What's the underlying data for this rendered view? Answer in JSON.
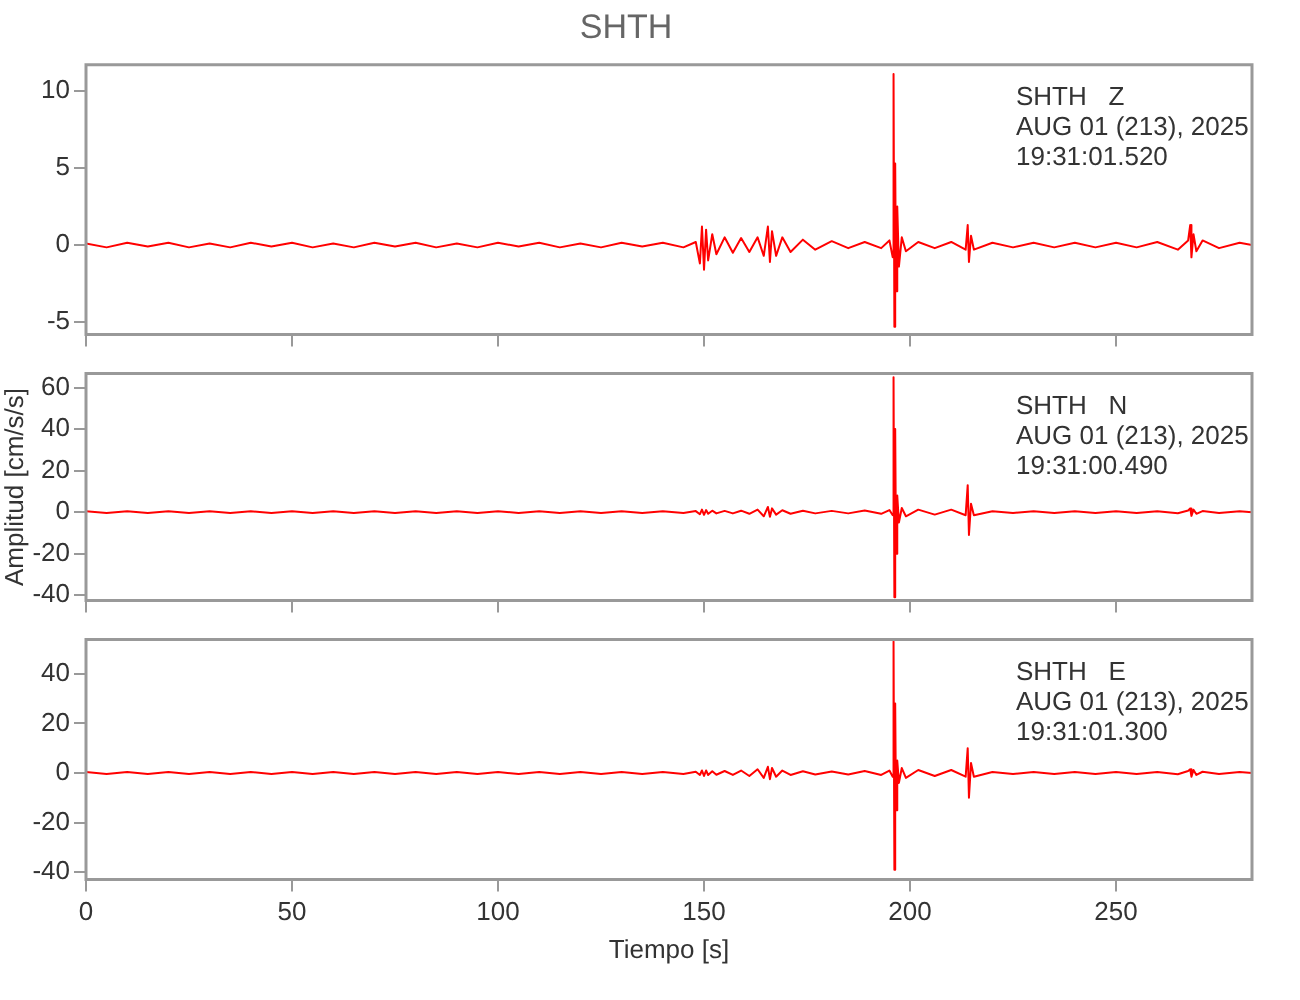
{
  "chart_data": [
    {
      "type": "line",
      "title": "SHTH",
      "x": [
        0,
        5,
        10,
        15,
        20,
        25,
        30,
        35,
        40,
        45,
        50,
        55,
        60,
        65,
        70,
        75,
        80,
        85,
        90,
        95,
        100,
        105,
        110,
        115,
        120,
        125,
        130,
        135,
        140,
        145,
        148,
        149,
        149.5,
        150,
        150.5,
        151,
        152,
        153,
        155,
        157,
        159,
        161,
        163,
        164.5,
        165.5,
        166,
        166.5,
        167.5,
        169,
        171,
        174,
        177,
        181,
        185,
        189,
        193,
        195,
        195.8,
        196,
        196.2,
        196.4,
        196.6,
        196.9,
        197.3,
        198,
        199,
        202,
        206,
        210,
        213.5,
        214,
        214.3,
        214.8,
        215.5,
        220,
        225,
        230,
        235,
        240,
        245,
        250,
        255,
        260,
        265,
        267.5,
        268,
        268.3,
        268.8,
        269.5,
        271,
        275,
        280,
        283
      ],
      "series": [
        {
          "color": "#ff0000",
          "values": [
            0.1,
            -0.15,
            0.15,
            -0.1,
            0.15,
            -0.15,
            0.1,
            -0.15,
            0.15,
            -0.1,
            0.15,
            -0.15,
            0.1,
            -0.15,
            0.15,
            -0.1,
            0.15,
            -0.15,
            0.1,
            -0.15,
            0.15,
            -0.1,
            0.15,
            -0.15,
            0.1,
            -0.15,
            0.15,
            -0.1,
            0.15,
            -0.15,
            0.2,
            -1.2,
            1.2,
            -1.6,
            1.0,
            -1.0,
            0.7,
            -0.6,
            0.5,
            -0.5,
            0.45,
            -0.45,
            0.5,
            -0.7,
            1.2,
            -1.1,
            0.9,
            -0.7,
            0.5,
            -0.45,
            0.35,
            -0.3,
            0.25,
            -0.2,
            0.2,
            -0.2,
            0.3,
            -0.8,
            11.1,
            -5.3,
            5.3,
            -3,
            2.5,
            -1.4,
            0.5,
            -0.4,
            0.2,
            -0.2,
            0.2,
            -0.3,
            1.3,
            -1.1,
            0.6,
            -0.3,
            0.15,
            -0.15,
            0.15,
            -0.15,
            0.15,
            -0.15,
            0.15,
            -0.15,
            0.2,
            -0.3,
            0.3,
            1.3,
            -0.8,
            0.7,
            -0.4,
            0.3,
            -0.2,
            0.15,
            0
          ]
        }
      ],
      "xlim": [
        0,
        283
      ],
      "xticks": [
        0,
        50,
        100,
        150,
        200,
        250
      ],
      "ylim": [
        -5.8,
        11.7
      ],
      "yticks": [
        -5,
        0,
        5,
        10
      ],
      "annotations": [
        "SHTH   Z",
        "AUG 01 (213), 2025",
        "19:31:01.520"
      ],
      "tick_labels": "y",
      "marker": "none"
    },
    {
      "type": "line",
      "ylabel": "Amplitud [cm/s/s]",
      "x": [
        0,
        5,
        10,
        15,
        20,
        25,
        30,
        35,
        40,
        45,
        50,
        55,
        60,
        65,
        70,
        75,
        80,
        85,
        90,
        95,
        100,
        105,
        110,
        115,
        120,
        125,
        130,
        135,
        140,
        145,
        148,
        149,
        149.5,
        150,
        150.5,
        151,
        152,
        153,
        155,
        157,
        159,
        161,
        163,
        164.5,
        165.5,
        166,
        166.5,
        167.5,
        169,
        171,
        174,
        177,
        181,
        185,
        189,
        193,
        195,
        195.8,
        196,
        196.2,
        196.4,
        196.6,
        196.9,
        197.3,
        198,
        199,
        202,
        206,
        210,
        213.5,
        214,
        214.3,
        214.8,
        215.5,
        220,
        225,
        230,
        235,
        240,
        245,
        250,
        255,
        260,
        265,
        267.5,
        268,
        268.3,
        268.8,
        269.5,
        271,
        275,
        280,
        283
      ],
      "series": [
        {
          "color": "#ff0000",
          "values": [
            0.4,
            -0.4,
            0.4,
            -0.4,
            0.4,
            -0.4,
            0.4,
            -0.4,
            0.4,
            -0.4,
            0.4,
            -0.4,
            0.4,
            -0.4,
            0.4,
            -0.4,
            0.4,
            -0.4,
            0.4,
            -0.4,
            0.4,
            -0.4,
            0.4,
            -0.4,
            0.4,
            -0.4,
            0.4,
            -0.4,
            0.4,
            -0.4,
            0.5,
            -1.0,
            1.2,
            -1.3,
            1.0,
            -0.8,
            0.7,
            -0.6,
            0.6,
            -0.6,
            0.7,
            -0.8,
            1.2,
            -2.0,
            2.5,
            -2.2,
            1.8,
            -1.2,
            0.9,
            -0.8,
            0.7,
            -0.6,
            0.6,
            -0.6,
            0.8,
            -0.8,
            1.0,
            -1.5,
            65,
            -41,
            40,
            -20,
            8,
            -5,
            2,
            -2,
            1.2,
            -1.2,
            1.2,
            -1.5,
            13,
            -11,
            4,
            -1.5,
            0.4,
            -0.4,
            0.4,
            -0.4,
            0.4,
            -0.4,
            0.4,
            -0.4,
            0.4,
            -0.5,
            0.8,
            1.8,
            -1.8,
            1.2,
            -0.8,
            0.5,
            -0.4,
            0.4,
            0
          ]
        }
      ],
      "xlim": [
        0,
        283
      ],
      "xticks": [
        0,
        50,
        100,
        150,
        200,
        250
      ],
      "ylim": [
        -42.5,
        66.7
      ],
      "yticks": [
        -40,
        -20,
        0,
        20,
        40,
        60
      ],
      "annotations": [
        "SHTH   N",
        "AUG 01 (213), 2025",
        "19:31:00.490"
      ],
      "tick_labels": "y",
      "marker": "none"
    },
    {
      "type": "line",
      "xlabel": "Tiempo [s]",
      "x": [
        0,
        5,
        10,
        15,
        20,
        25,
        30,
        35,
        40,
        45,
        50,
        55,
        60,
        65,
        70,
        75,
        80,
        85,
        90,
        95,
        100,
        105,
        110,
        115,
        120,
        125,
        130,
        135,
        140,
        145,
        148,
        149,
        149.5,
        150,
        150.5,
        151,
        152,
        153,
        155,
        157,
        159,
        161,
        163,
        164.5,
        165.5,
        166,
        166.5,
        167.5,
        169,
        171,
        174,
        177,
        181,
        185,
        189,
        193,
        195,
        195.8,
        196,
        196.2,
        196.4,
        196.6,
        196.9,
        197.3,
        198,
        199,
        202,
        206,
        210,
        213.5,
        214,
        214.3,
        214.8,
        215.5,
        220,
        225,
        230,
        235,
        240,
        245,
        250,
        255,
        260,
        265,
        267.5,
        268,
        268.3,
        268.8,
        269.5,
        271,
        275,
        280,
        283
      ],
      "series": [
        {
          "color": "#ff0000",
          "values": [
            0.4,
            -0.4,
            0.4,
            -0.4,
            0.4,
            -0.4,
            0.4,
            -0.4,
            0.4,
            -0.4,
            0.4,
            -0.4,
            0.4,
            -0.4,
            0.4,
            -0.4,
            0.4,
            -0.4,
            0.4,
            -0.4,
            0.4,
            -0.4,
            0.4,
            -0.4,
            0.4,
            -0.4,
            0.4,
            -0.4,
            0.4,
            -0.4,
            0.5,
            -0.8,
            1.0,
            -1.2,
            1.0,
            -0.8,
            0.7,
            -0.7,
            0.8,
            -0.8,
            1.0,
            -1.2,
            1.5,
            -2.0,
            2.5,
            -2.5,
            2.0,
            -1.5,
            1.0,
            -0.8,
            0.7,
            -0.6,
            0.6,
            -0.6,
            0.8,
            -0.8,
            1.0,
            -1.5,
            53,
            -39,
            28,
            -15,
            5,
            -4,
            2,
            -2,
            1.2,
            -1.2,
            1.2,
            -1.5,
            10,
            -10,
            4,
            -1.5,
            0.4,
            -0.4,
            0.4,
            -0.4,
            0.4,
            -0.4,
            0.4,
            -0.4,
            0.4,
            -0.5,
            0.8,
            1.5,
            -1.5,
            1.2,
            -0.8,
            0.5,
            -0.4,
            0.4,
            0
          ]
        }
      ],
      "xlim": [
        0,
        283
      ],
      "xticks": [
        0,
        50,
        100,
        150,
        200,
        250
      ],
      "ylim": [
        -43,
        53.8
      ],
      "yticks": [
        -40,
        -20,
        0,
        20,
        40
      ],
      "annotations": [
        "SHTH   E",
        "AUG 01 (213), 2025",
        "19:31:01.300"
      ],
      "marker": "none"
    }
  ]
}
